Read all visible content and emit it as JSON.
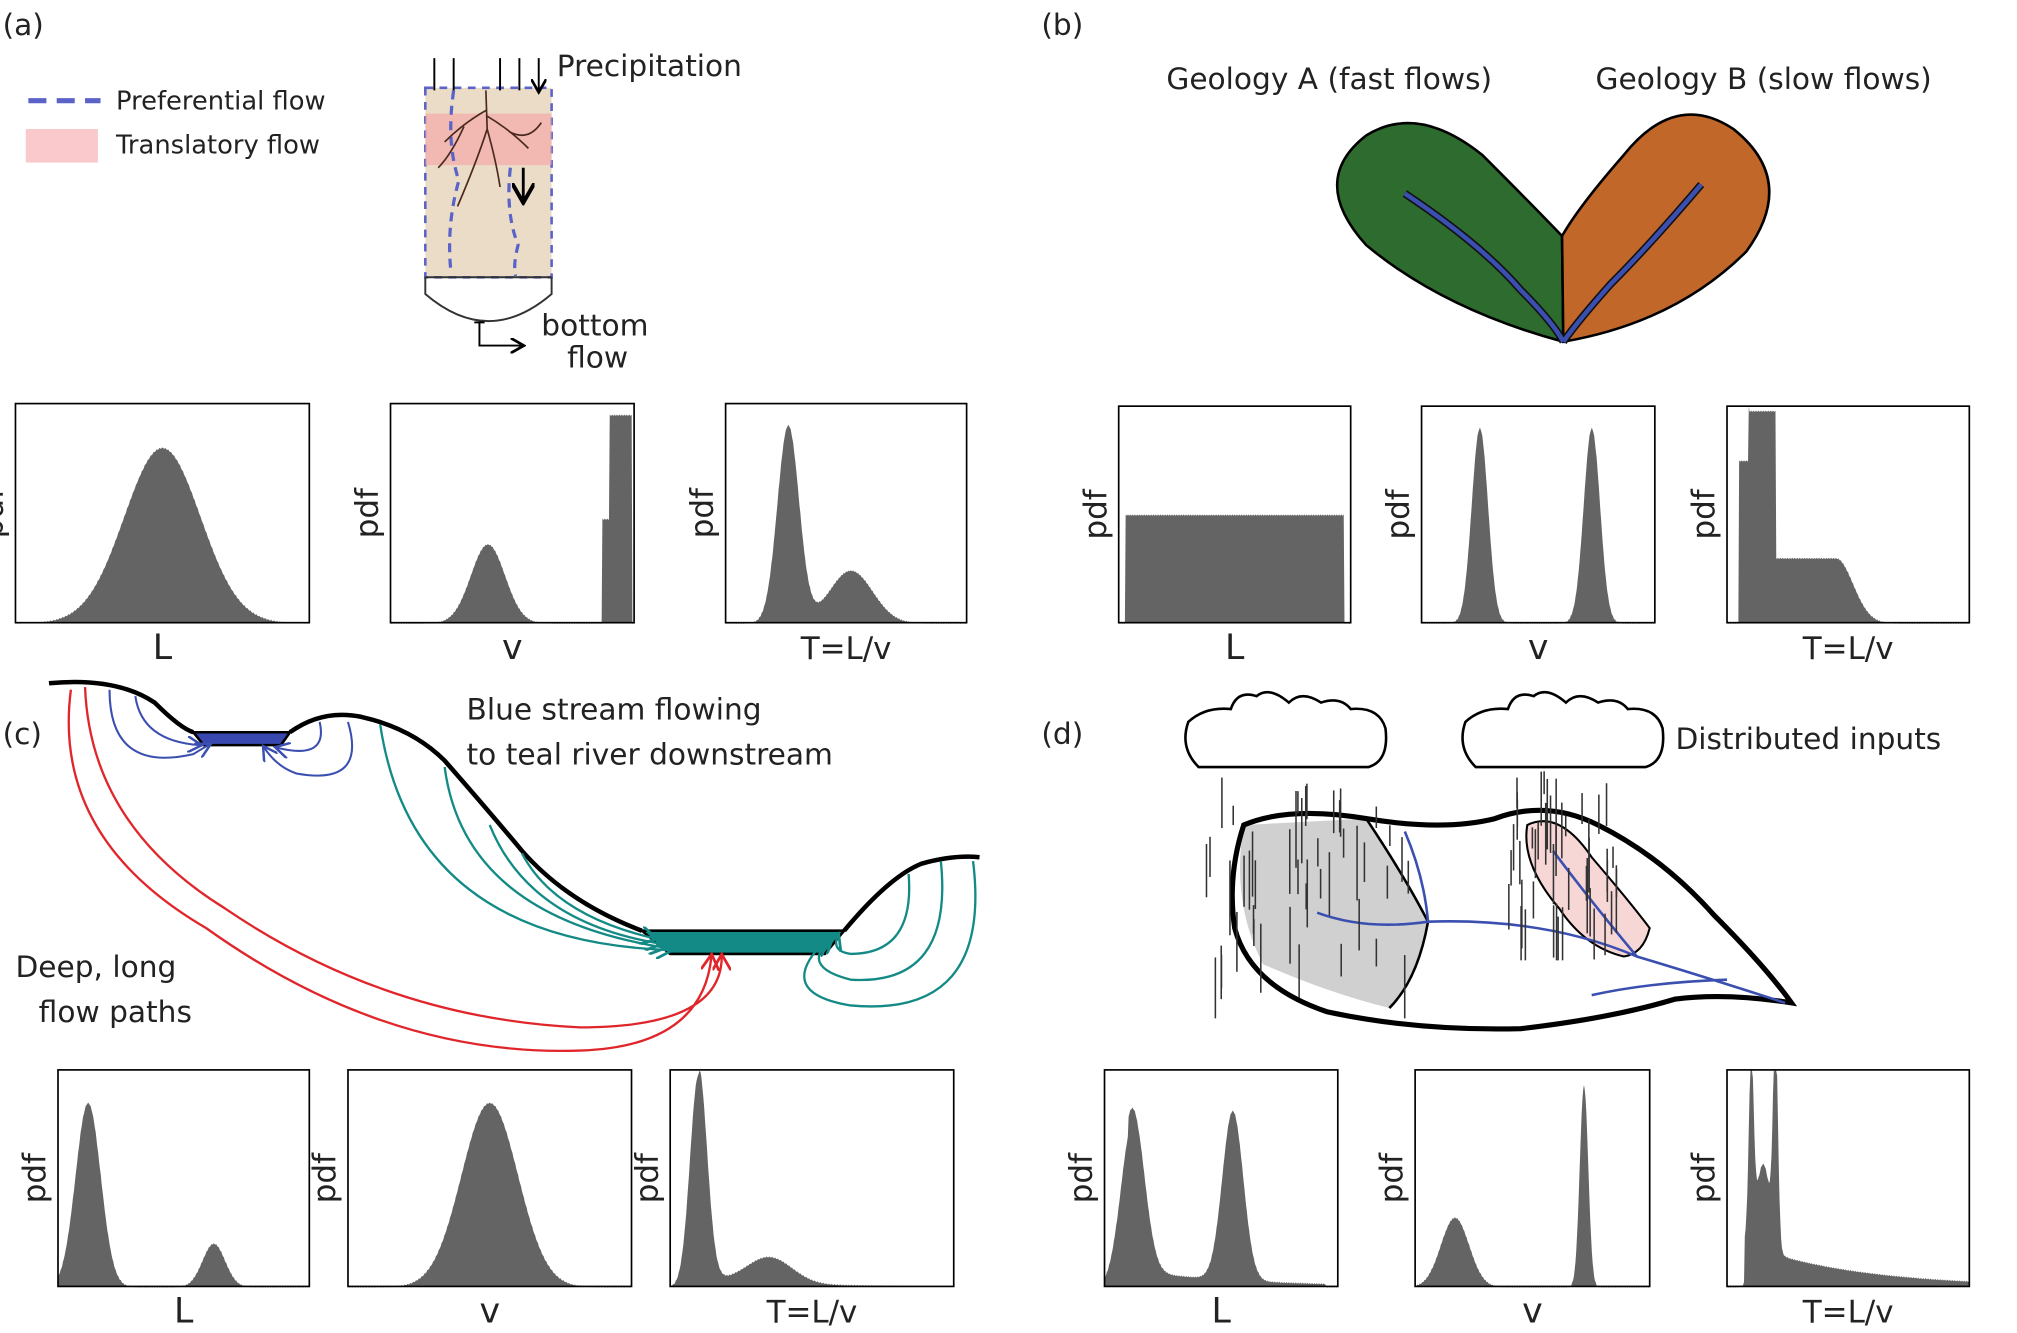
{
  "panels": [
    {
      "label": "(a)",
      "legend": [
        "Preferential flow",
        "Translatory flow"
      ],
      "annotations": [
        [
          "Precipitation"
        ],
        [
          "bottom",
          "flow"
        ]
      ],
      "plots": [
        {
          "ylabel": "pdf",
          "xlabel": "L"
        },
        {
          "ylabel": "pdf",
          "xlabel": "v"
        },
        {
          "ylabel": "pdf",
          "xlabel": "T=L/v"
        }
      ]
    },
    {
      "label": "(b)",
      "annotations": [
        [
          "Geology A (fast flows)"
        ],
        [
          "Geology B (slow flows)"
        ]
      ],
      "plots": [
        {
          "ylabel": "pdf",
          "xlabel": "L"
        },
        {
          "ylabel": "pdf",
          "xlabel": "v"
        },
        {
          "ylabel": "pdf",
          "xlabel": "T=L/v"
        }
      ]
    },
    {
      "label": "(c)",
      "annotations": [
        [
          "Blue stream flowing",
          "to teal river downstream"
        ],
        [
          "Deep, long",
          "flow paths"
        ]
      ],
      "plots": [
        {
          "ylabel": "pdf",
          "xlabel": "L"
        },
        {
          "ylabel": "pdf",
          "xlabel": "v"
        },
        {
          "ylabel": "pdf",
          "xlabel": "T=L/v"
        }
      ]
    },
    {
      "label": "(d)",
      "annotations": [
        [
          "Distributed inputs"
        ]
      ],
      "plots": [
        {
          "ylabel": "pdf",
          "xlabel": "L"
        },
        {
          "ylabel": "pdf",
          "xlabel": "v"
        },
        {
          "ylabel": "pdf",
          "xlabel": "T=L/v"
        }
      ]
    }
  ]
}
